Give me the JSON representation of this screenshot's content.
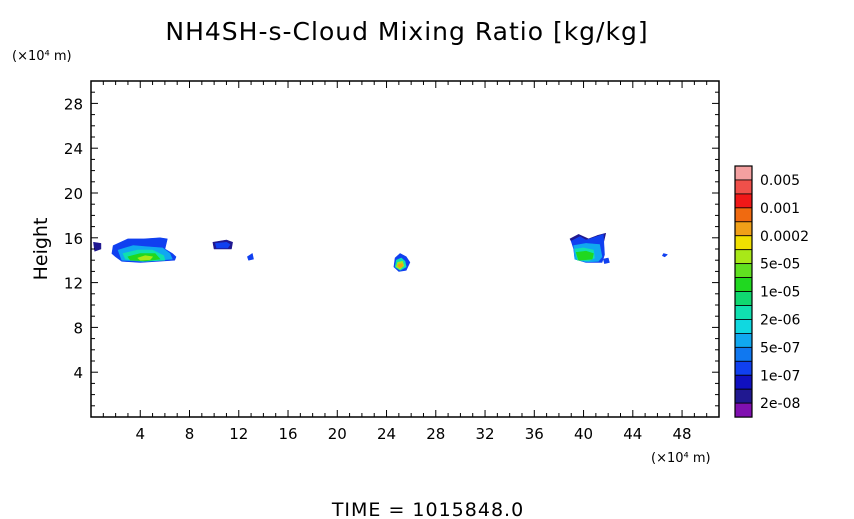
{
  "chart_data": {
    "type": "heatmap",
    "title": "NH4SH-s-Cloud Mixing Ratio [kg/kg]",
    "xlabel": "",
    "ylabel": "Height",
    "x_unit": "(×10⁴ m)",
    "y_unit": "(×10⁴ m)",
    "xlim": [
      0,
      51
    ],
    "ylim": [
      0,
      30
    ],
    "x_ticks": [
      4,
      8,
      12,
      16,
      20,
      24,
      28,
      32,
      36,
      40,
      44,
      48
    ],
    "y_ticks": [
      4,
      8,
      12,
      16,
      20,
      24,
      28
    ],
    "grid": false,
    "colorbar": {
      "placement": "right",
      "levels": [
        {
          "label": "0.005",
          "color": "#f4a0a0"
        },
        {
          "label": "",
          "color": "#f0504a"
        },
        {
          "label": "0.001",
          "color": "#f01818"
        },
        {
          "label": "",
          "color": "#f06a10"
        },
        {
          "label": "0.0002",
          "color": "#f0a018"
        },
        {
          "label": "",
          "color": "#f0e000"
        },
        {
          "label": "5e-05",
          "color": "#a8e818"
        },
        {
          "label": "",
          "color": "#60e020"
        },
        {
          "label": "1e-05",
          "color": "#20d820"
        },
        {
          "label": "",
          "color": "#10d870"
        },
        {
          "label": "2e-06",
          "color": "#10e0b0"
        },
        {
          "label": "",
          "color": "#10d8e0"
        },
        {
          "label": "5e-07",
          "color": "#10a8f0"
        },
        {
          "label": "",
          "color": "#1078f0"
        },
        {
          "label": "1e-07",
          "color": "#1040f0"
        },
        {
          "label": "",
          "color": "#1010c0"
        },
        {
          "label": "2e-08",
          "color": "#201890"
        },
        {
          "label": "",
          "color": "#8010b0"
        }
      ]
    },
    "regions": [
      {
        "level": "2e-08",
        "polygon": [
          [
            0.2,
            15.6
          ],
          [
            0.8,
            15.5
          ],
          [
            0.8,
            15.0
          ],
          [
            0.3,
            14.8
          ]
        ]
      },
      {
        "level": "1e-07",
        "polygon": [
          [
            1.8,
            15.3
          ],
          [
            3.0,
            15.9
          ],
          [
            4.3,
            15.9
          ],
          [
            5.6,
            16.0
          ],
          [
            6.2,
            15.9
          ],
          [
            6.0,
            15.0
          ],
          [
            6.6,
            14.6
          ],
          [
            6.9,
            14.3
          ],
          [
            6.8,
            14.0
          ],
          [
            4.0,
            13.8
          ],
          [
            2.5,
            13.9
          ],
          [
            2.0,
            14.3
          ],
          [
            1.7,
            14.6
          ]
        ]
      },
      {
        "level": "5e-07",
        "polygon": [
          [
            2.2,
            14.9
          ],
          [
            3.4,
            15.3
          ],
          [
            4.6,
            15.2
          ],
          [
            5.8,
            15.1
          ],
          [
            6.4,
            14.6
          ],
          [
            6.6,
            14.1
          ],
          [
            4.2,
            13.9
          ],
          [
            2.5,
            14.0
          ]
        ]
      },
      {
        "level": "2e-06",
        "polygon": [
          [
            2.6,
            14.6
          ],
          [
            3.8,
            14.9
          ],
          [
            5.0,
            14.9
          ],
          [
            5.9,
            14.4
          ],
          [
            6.0,
            14.0
          ],
          [
            4.2,
            13.9
          ],
          [
            2.8,
            14.1
          ]
        ]
      },
      {
        "level": "1e-05",
        "polygon": [
          [
            3.0,
            14.3
          ],
          [
            4.0,
            14.6
          ],
          [
            5.2,
            14.6
          ],
          [
            5.6,
            14.1
          ],
          [
            4.4,
            13.95
          ],
          [
            3.2,
            14.0
          ]
        ]
      },
      {
        "level": "5e-05",
        "polygon": [
          [
            3.8,
            14.2
          ],
          [
            4.4,
            14.4
          ],
          [
            5.0,
            14.3
          ],
          [
            4.8,
            14.05
          ],
          [
            4.0,
            14.0
          ]
        ]
      },
      {
        "level": "2e-08",
        "polygon": [
          [
            9.9,
            15.6
          ],
          [
            11.0,
            15.8
          ],
          [
            11.5,
            15.6
          ],
          [
            11.4,
            15.0
          ],
          [
            10.0,
            15.0
          ]
        ]
      },
      {
        "level": "1e-07",
        "polygon": [
          [
            10.1,
            15.5
          ],
          [
            11.0,
            15.6
          ],
          [
            11.3,
            15.4
          ],
          [
            11.1,
            15.1
          ],
          [
            10.2,
            15.1
          ]
        ]
      },
      {
        "level": "1e-07",
        "polygon": [
          [
            12.7,
            14.3
          ],
          [
            13.1,
            14.6
          ],
          [
            13.2,
            14.1
          ],
          [
            12.8,
            14.0
          ]
        ]
      },
      {
        "level": "1e-07",
        "polygon": [
          [
            24.7,
            14.2
          ],
          [
            25.1,
            14.6
          ],
          [
            25.6,
            14.3
          ],
          [
            25.9,
            13.8
          ],
          [
            25.6,
            13.1
          ],
          [
            25.0,
            13.0
          ],
          [
            24.6,
            13.4
          ]
        ]
      },
      {
        "level": "2e-06",
        "polygon": [
          [
            24.8,
            14.0
          ],
          [
            25.2,
            14.2
          ],
          [
            25.5,
            13.9
          ],
          [
            25.6,
            13.4
          ],
          [
            25.1,
            13.1
          ],
          [
            24.7,
            13.4
          ]
        ]
      },
      {
        "level": "5e-05",
        "polygon": [
          [
            24.9,
            13.8
          ],
          [
            25.3,
            13.9
          ],
          [
            25.4,
            13.5
          ],
          [
            25.1,
            13.2
          ],
          [
            24.8,
            13.4
          ]
        ]
      },
      {
        "level": "0.0002",
        "polygon": [
          [
            25.0,
            13.65
          ],
          [
            25.3,
            13.7
          ],
          [
            25.3,
            13.45
          ],
          [
            25.05,
            13.35
          ],
          [
            24.9,
            13.5
          ]
        ]
      },
      {
        "level": "2e-08",
        "polygon": [
          [
            38.9,
            15.9
          ],
          [
            39.6,
            16.3
          ],
          [
            40.4,
            15.9
          ],
          [
            41.1,
            16.2
          ],
          [
            41.8,
            16.4
          ],
          [
            41.5,
            15.0
          ],
          [
            40.4,
            15.1
          ],
          [
            39.3,
            15.1
          ]
        ]
      },
      {
        "level": "1e-07",
        "polygon": [
          [
            39.0,
            15.7
          ],
          [
            39.7,
            16.1
          ],
          [
            40.2,
            15.8
          ],
          [
            40.8,
            16.0
          ],
          [
            41.6,
            16.3
          ],
          [
            41.7,
            14.5
          ],
          [
            41.5,
            13.8
          ],
          [
            40.2,
            13.8
          ],
          [
            39.3,
            14.1
          ],
          [
            39.2,
            15.0
          ]
        ]
      },
      {
        "level": "5e-07",
        "polygon": [
          [
            39.2,
            15.3
          ],
          [
            40.2,
            15.5
          ],
          [
            41.3,
            15.4
          ],
          [
            41.5,
            14.3
          ],
          [
            41.2,
            13.9
          ],
          [
            40.2,
            13.85
          ],
          [
            39.3,
            14.1
          ]
        ]
      },
      {
        "level": "2e-06",
        "polygon": [
          [
            39.3,
            15.0
          ],
          [
            40.0,
            15.1
          ],
          [
            40.8,
            14.9
          ],
          [
            40.9,
            14.2
          ],
          [
            40.4,
            13.95
          ],
          [
            39.5,
            14.0
          ]
        ]
      },
      {
        "level": "1e-05",
        "polygon": [
          [
            39.4,
            14.7
          ],
          [
            40.2,
            14.8
          ],
          [
            40.8,
            14.6
          ],
          [
            40.7,
            14.1
          ],
          [
            39.6,
            14.0
          ]
        ]
      },
      {
        "level": "1e-07",
        "polygon": [
          [
            41.6,
            14.1
          ],
          [
            42.0,
            14.2
          ],
          [
            42.1,
            13.8
          ],
          [
            41.7,
            13.7
          ]
        ]
      },
      {
        "level": "1e-07",
        "polygon": [
          [
            46.5,
            14.6
          ],
          [
            46.8,
            14.5
          ],
          [
            46.6,
            14.3
          ],
          [
            46.4,
            14.4
          ]
        ]
      }
    ],
    "annotation": "TIME = 1015848.0"
  }
}
